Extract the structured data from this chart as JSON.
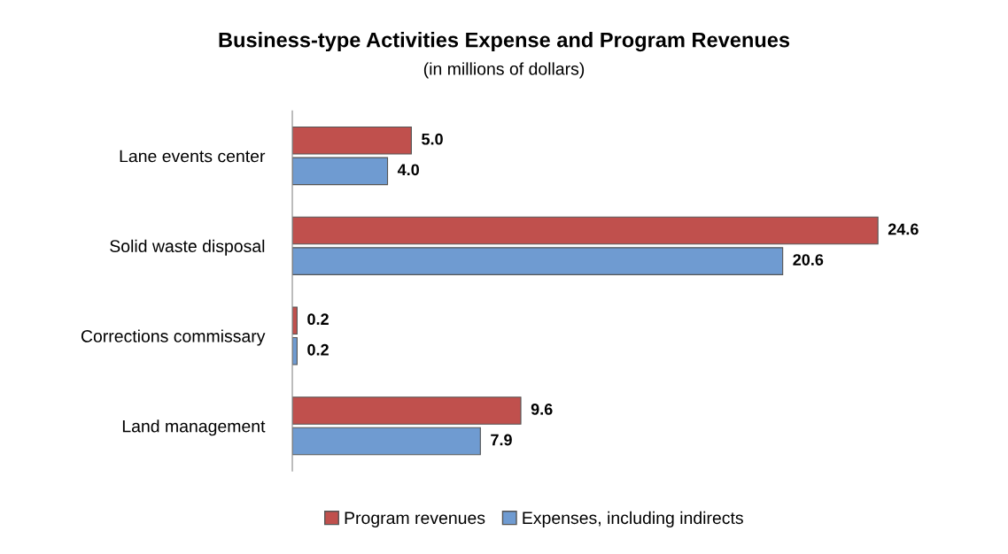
{
  "chart_data": {
    "type": "bar",
    "orientation": "horizontal",
    "title": "Business-type Activities Expense and Program Revenues",
    "subtitle": "(in millions of dollars)",
    "categories": [
      "Lane events center",
      "Solid waste disposal",
      "Corrections commissary",
      "Land management"
    ],
    "series": [
      {
        "name": "Program revenues",
        "color": "#c0504d",
        "values": [
          5.0,
          24.6,
          0.2,
          9.6
        ],
        "value_labels": [
          "5.0",
          "24.6",
          "0.2",
          "9.6"
        ]
      },
      {
        "name": "Expenses, including indirects",
        "color": "#6f9bd1",
        "values": [
          4.0,
          20.6,
          0.2,
          7.9
        ],
        "value_labels": [
          "4.0",
          "20.6",
          "0.2",
          "7.9"
        ]
      }
    ],
    "legend": "bottom",
    "grid": false,
    "tick_labels": "y"
  }
}
